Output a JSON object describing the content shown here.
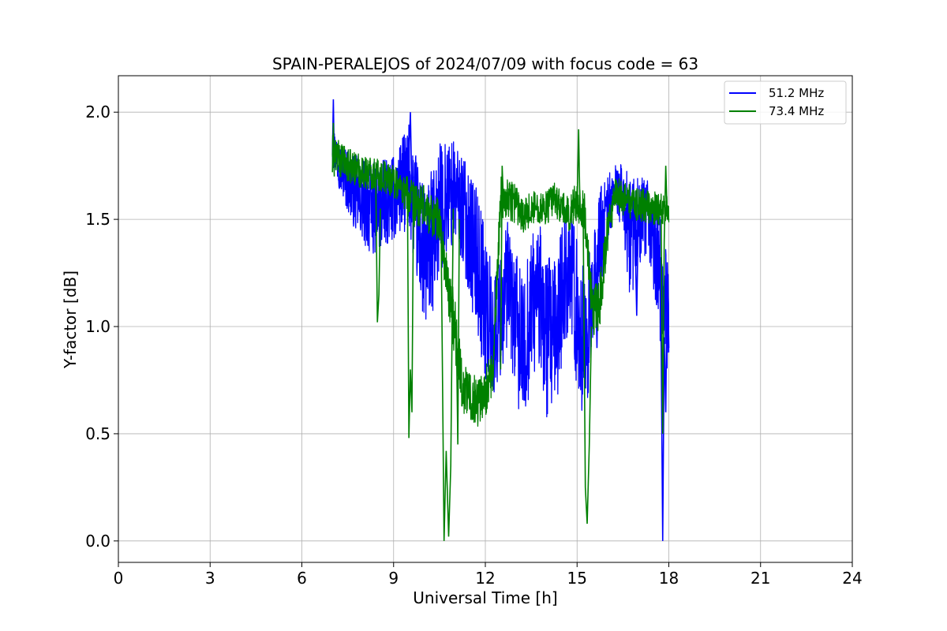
{
  "chart_data": {
    "type": "line",
    "title": "SPAIN-PERALEJOS of 2024/07/09 with focus code = 63",
    "xlabel": "Universal Time [h]",
    "ylabel": "Y-factor [dB]",
    "xlim": [
      0,
      24
    ],
    "ylim": [
      -0.1,
      2.17
    ],
    "xticks": [
      "0",
      "3",
      "6",
      "9",
      "12",
      "15",
      "18",
      "21",
      "24"
    ],
    "yticks": [
      "0.0",
      "0.5",
      "1.0",
      "1.5",
      "2.0"
    ],
    "grid": true,
    "legend_position": "top-right",
    "series": [
      {
        "name": "51.2 MHz",
        "color": "#0000ff",
        "x": [
          7.0,
          7.25,
          7.5,
          7.75,
          8.0,
          8.25,
          8.5,
          8.75,
          9.0,
          9.25,
          9.5,
          9.75,
          10.0,
          10.25,
          10.5,
          10.75,
          11.0,
          11.25,
          11.5,
          11.75,
          12.0,
          12.25,
          12.5,
          12.75,
          13.0,
          13.25,
          13.5,
          13.75,
          14.0,
          14.25,
          14.5,
          14.75,
          15.0,
          15.25,
          15.5,
          15.75,
          16.0,
          16.25,
          16.5,
          16.75,
          17.0,
          17.25,
          17.5,
          17.75,
          18.0
        ],
        "y": [
          1.85,
          1.75,
          1.68,
          1.62,
          1.58,
          1.55,
          1.55,
          1.58,
          1.6,
          1.65,
          1.7,
          1.5,
          1.3,
          1.38,
          1.55,
          1.6,
          1.62,
          1.55,
          1.42,
          1.3,
          1.1,
          0.95,
          1.05,
          1.2,
          1.0,
          0.85,
          1.1,
          1.15,
          0.95,
          0.9,
          1.15,
          1.3,
          1.05,
          0.9,
          1.1,
          1.4,
          1.55,
          1.65,
          1.6,
          1.4,
          1.5,
          1.5,
          1.4,
          1.2,
          1.05
        ],
        "amplitude": [
          0.1,
          0.12,
          0.15,
          0.18,
          0.2,
          0.22,
          0.22,
          0.2,
          0.2,
          0.22,
          0.25,
          0.3,
          0.35,
          0.35,
          0.3,
          0.28,
          0.25,
          0.25,
          0.3,
          0.35,
          0.35,
          0.3,
          0.3,
          0.3,
          0.35,
          0.35,
          0.35,
          0.35,
          0.4,
          0.4,
          0.35,
          0.3,
          0.35,
          0.35,
          0.3,
          0.25,
          0.15,
          0.12,
          0.15,
          0.3,
          0.2,
          0.2,
          0.25,
          0.3,
          0.35
        ]
      },
      {
        "name": "73.4 MHz",
        "color": "#008000",
        "x": [
          7.0,
          7.25,
          7.5,
          7.75,
          8.0,
          8.25,
          8.5,
          8.75,
          9.0,
          9.25,
          9.5,
          9.75,
          10.0,
          10.25,
          10.5,
          10.75,
          11.0,
          11.25,
          11.5,
          11.75,
          12.0,
          12.25,
          12.5,
          12.75,
          13.0,
          13.25,
          13.5,
          13.75,
          14.0,
          14.25,
          14.5,
          14.75,
          15.0,
          15.25,
          15.5,
          15.75,
          16.0,
          16.25,
          16.5,
          16.75,
          17.0,
          17.25,
          17.5,
          17.75,
          18.0
        ],
        "y": [
          1.82,
          1.78,
          1.75,
          1.74,
          1.72,
          1.72,
          1.7,
          1.7,
          1.68,
          1.65,
          1.6,
          1.56,
          1.56,
          1.52,
          1.5,
          1.2,
          1.0,
          0.72,
          0.68,
          0.65,
          0.7,
          0.78,
          1.6,
          1.6,
          1.58,
          1.52,
          1.55,
          1.56,
          1.55,
          1.6,
          1.55,
          1.52,
          1.6,
          1.52,
          1.05,
          1.12,
          1.45,
          1.62,
          1.6,
          1.58,
          1.57,
          1.56,
          1.55,
          1.55,
          1.55
        ],
        "amplitude": [
          0.08,
          0.08,
          0.08,
          0.08,
          0.08,
          0.08,
          0.08,
          0.08,
          0.08,
          0.08,
          0.1,
          0.1,
          0.1,
          0.1,
          0.1,
          0.12,
          0.15,
          0.12,
          0.12,
          0.12,
          0.12,
          0.1,
          0.1,
          0.1,
          0.1,
          0.08,
          0.08,
          0.08,
          0.08,
          0.08,
          0.08,
          0.08,
          0.1,
          0.1,
          0.12,
          0.12,
          0.1,
          0.08,
          0.08,
          0.08,
          0.08,
          0.08,
          0.08,
          0.08,
          0.08
        ]
      }
    ],
    "annotations": [
      {
        "series": "73.4 MHz",
        "x": [
          7.0,
          7.03,
          7.06
        ],
        "y": [
          1.72,
          1.95,
          1.7
        ]
      },
      {
        "series": "51.2 MHz",
        "x": [
          7.0,
          7.03,
          7.06
        ],
        "y": [
          1.8,
          2.06,
          1.78
        ]
      },
      {
        "series": "73.4 MHz",
        "x": [
          8.42,
          8.47,
          8.52,
          8.57
        ],
        "y": [
          1.65,
          1.02,
          1.15,
          1.55
        ]
      },
      {
        "series": "51.2 MHz",
        "x": [
          9.5,
          9.55,
          9.6,
          9.65
        ],
        "y": [
          1.8,
          2.0,
          1.6,
          1.7
        ]
      },
      {
        "series": "73.4 MHz",
        "x": [
          9.45,
          9.5,
          9.55,
          9.6,
          9.65
        ],
        "y": [
          1.7,
          0.48,
          0.8,
          0.6,
          1.6
        ]
      },
      {
        "series": "73.4 MHz",
        "x": [
          10.55,
          10.65,
          10.72,
          10.8,
          10.87,
          10.95
        ],
        "y": [
          1.5,
          0.0,
          0.42,
          0.02,
          0.35,
          1.55
        ]
      },
      {
        "series": "73.4 MHz",
        "x": [
          11.05,
          11.1,
          11.15
        ],
        "y": [
          1.0,
          0.45,
          1.5
        ]
      },
      {
        "series": "73.4 MHz",
        "x": [
          12.5,
          12.55,
          12.6
        ],
        "y": [
          0.8,
          1.75,
          1.55
        ]
      },
      {
        "series": "73.4 MHz",
        "x": [
          15.0,
          15.05,
          15.1
        ],
        "y": [
          1.55,
          1.92,
          1.5
        ]
      },
      {
        "series": "73.4 MHz",
        "x": [
          15.2,
          15.27,
          15.33,
          15.4,
          15.47
        ],
        "y": [
          1.5,
          0.25,
          0.08,
          0.45,
          1.0
        ]
      },
      {
        "series": "51.2 MHz",
        "x": [
          15.6,
          15.65,
          15.7
        ],
        "y": [
          1.3,
          0.9,
          1.45
        ]
      },
      {
        "series": "51.2 MHz",
        "x": [
          16.9,
          16.95,
          17.0
        ],
        "y": [
          1.4,
          1.05,
          1.5
        ]
      },
      {
        "series": "51.2 MHz",
        "x": [
          17.55,
          17.6,
          17.65
        ],
        "y": [
          1.5,
          1.1,
          1.55
        ]
      },
      {
        "series": "51.2 MHz",
        "x": [
          17.7,
          17.75,
          17.8,
          17.85,
          17.9,
          17.95,
          18.0
        ],
        "y": [
          1.3,
          0.9,
          0.0,
          0.95,
          0.6,
          1.3,
          0.9
        ]
      },
      {
        "series": "73.4 MHz",
        "x": [
          17.75,
          17.8,
          17.85,
          17.9,
          17.95
        ],
        "y": [
          1.5,
          0.5,
          1.4,
          1.75,
          1.5
        ]
      }
    ]
  }
}
